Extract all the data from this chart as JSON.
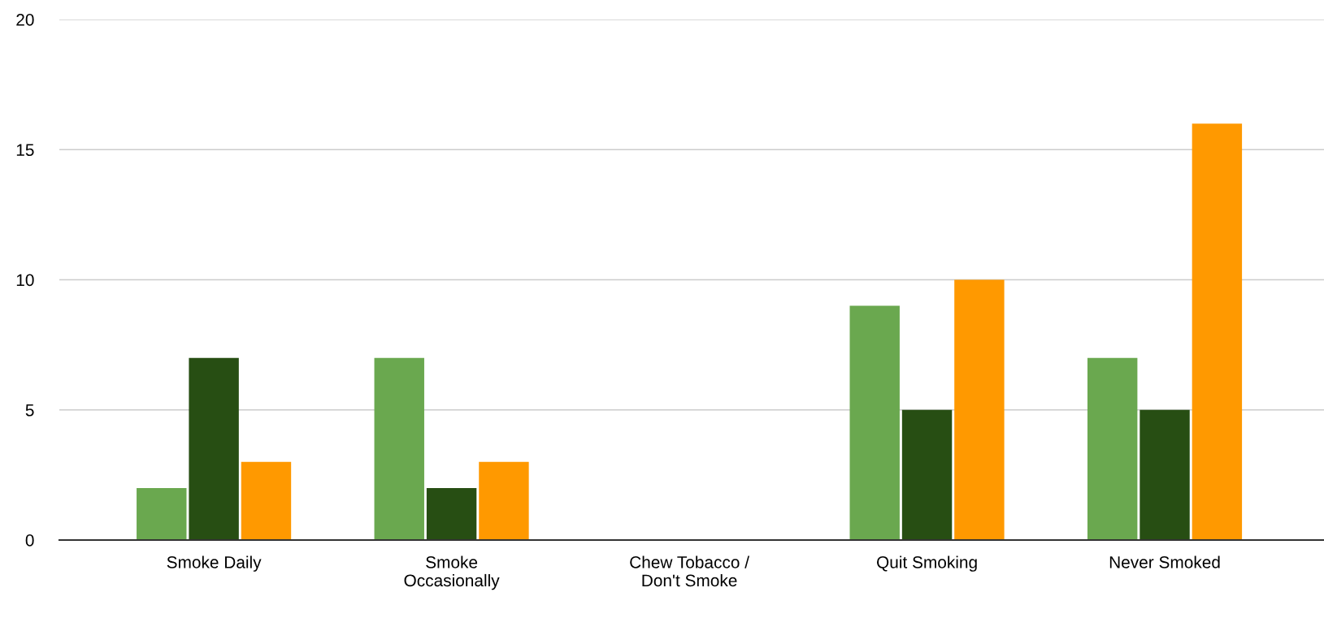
{
  "chart_data": {
    "type": "bar",
    "categories": [
      "Smoke Daily",
      "Smoke\nOccasionally",
      "Chew Tobacco /\nDon't Smoke",
      "Quit Smoking",
      "Never Smoked"
    ],
    "series": [
      {
        "color": "#6aa84f",
        "values": [
          2,
          7,
          0,
          9,
          7
        ]
      },
      {
        "color": "#274e13",
        "values": [
          7,
          2,
          0,
          5,
          5
        ]
      },
      {
        "color": "#ff9900",
        "values": [
          3,
          3,
          0,
          10,
          16
        ]
      }
    ],
    "ylim": [
      0,
      20
    ],
    "yticks": [
      0,
      5,
      10,
      15,
      20
    ],
    "grid": "y"
  }
}
